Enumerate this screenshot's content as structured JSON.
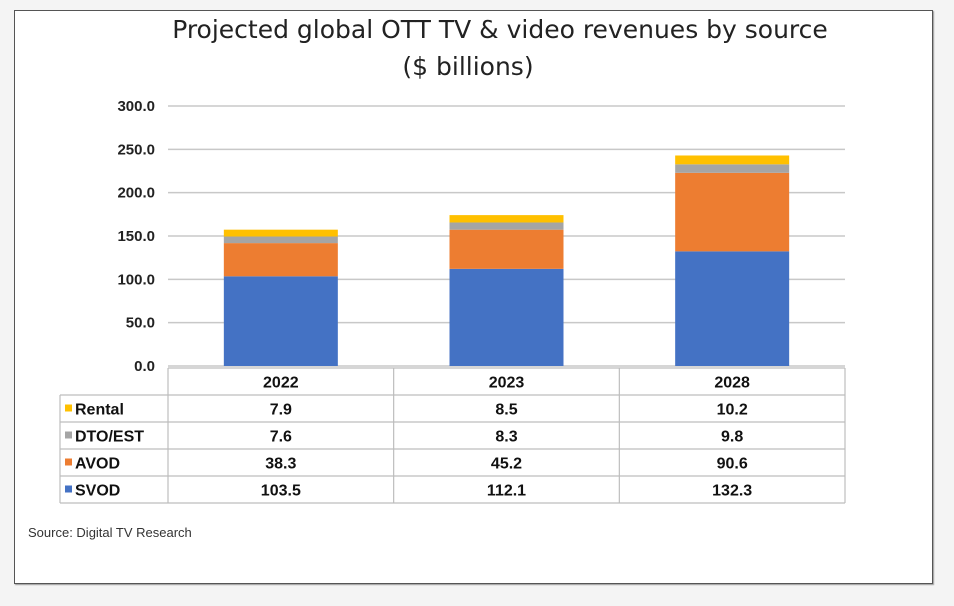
{
  "chart_data": {
    "type": "bar",
    "stacked": true,
    "title": "Projected global OTT TV & video revenues by source",
    "subtitle": "($ billions)",
    "categories": [
      "2022",
      "2023",
      "2028"
    ],
    "series": [
      {
        "name": "SVOD",
        "values": [
          103.5,
          112.1,
          132.3
        ],
        "color": "#4472c4"
      },
      {
        "name": "AVOD",
        "values": [
          38.3,
          45.2,
          90.6
        ],
        "color": "#ed7d31"
      },
      {
        "name": "DTO/EST",
        "values": [
          7.6,
          8.3,
          9.8
        ],
        "color": "#a5a5a5"
      },
      {
        "name": "Rental",
        "values": [
          7.9,
          8.5,
          10.2
        ],
        "color": "#ffc000"
      }
    ],
    "table_order": [
      "Rental",
      "DTO/EST",
      "AVOD",
      "SVOD"
    ],
    "yticks": [
      "0.0",
      "50.0",
      "100.0",
      "150.0",
      "200.0",
      "250.0",
      "300.0"
    ],
    "ylim": [
      0,
      300
    ],
    "grid": true,
    "legend": "data-table",
    "source": "Source: Digital TV Research"
  }
}
